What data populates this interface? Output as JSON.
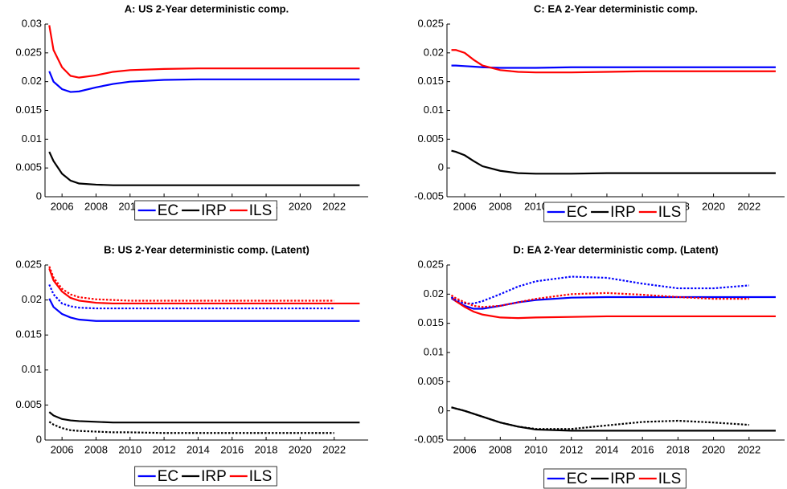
{
  "chart_data": [
    {
      "type": "line",
      "title": "A: US 2-Year deterministic comp.",
      "x": [
        2005.25,
        2005.5,
        2006,
        2006.5,
        2007,
        2008,
        2009,
        2010,
        2012,
        2014,
        2016,
        2018,
        2020,
        2022,
        2023.5
      ],
      "xlim": [
        2005,
        2024
      ],
      "xticks": [
        2006,
        2008,
        2010,
        2012,
        2014,
        2016,
        2018,
        2020,
        2022
      ],
      "ylim": [
        0,
        0.03
      ],
      "yticks": [
        0,
        0.005,
        0.01,
        0.015,
        0.02,
        0.025,
        0.03
      ],
      "series": [
        {
          "name": "EC",
          "color": "#0000ff",
          "values": [
            0.0218,
            0.02,
            0.0187,
            0.0182,
            0.0183,
            0.019,
            0.0196,
            0.02,
            0.0203,
            0.0204,
            0.0204,
            0.0204,
            0.0204,
            0.0204,
            0.0204
          ]
        },
        {
          "name": "IRP",
          "color": "#000000",
          "values": [
            0.0078,
            0.0062,
            0.004,
            0.0028,
            0.0023,
            0.0021,
            0.002,
            0.002,
            0.002,
            0.002,
            0.002,
            0.002,
            0.002,
            0.002,
            0.002
          ]
        },
        {
          "name": "ILS",
          "color": "#ff0000",
          "values": [
            0.0298,
            0.0255,
            0.0225,
            0.021,
            0.0207,
            0.0211,
            0.0217,
            0.022,
            0.0222,
            0.0223,
            0.0223,
            0.0223,
            0.0223,
            0.0223,
            0.0223
          ]
        }
      ]
    },
    {
      "type": "line",
      "title": "B: US 2-Year deterministic comp. (Latent)",
      "x": [
        2005.25,
        2005.5,
        2006,
        2006.5,
        2007,
        2008,
        2009,
        2010,
        2012,
        2014,
        2016,
        2018,
        2020,
        2022,
        2023.5
      ],
      "xlim": [
        2005,
        2024
      ],
      "xticks": [
        2006,
        2008,
        2010,
        2012,
        2014,
        2016,
        2018,
        2020,
        2022
      ],
      "ylim": [
        0,
        0.025
      ],
      "yticks": [
        0,
        0.005,
        0.01,
        0.015,
        0.02,
        0.025
      ],
      "series": [
        {
          "name": "EC",
          "color": "#0000ff",
          "values": [
            0.0202,
            0.019,
            0.018,
            0.0175,
            0.0172,
            0.017,
            0.017,
            0.017,
            0.017,
            0.017,
            0.017,
            0.017,
            0.017,
            0.017,
            0.017
          ]
        },
        {
          "name": "IRP",
          "color": "#000000",
          "values": [
            0.004,
            0.0035,
            0.003,
            0.0028,
            0.0027,
            0.0026,
            0.0025,
            0.0025,
            0.0025,
            0.0025,
            0.0025,
            0.0025,
            0.0025,
            0.0025,
            0.0025
          ]
        },
        {
          "name": "ILS",
          "color": "#ff0000",
          "values": [
            0.0245,
            0.0228,
            0.0212,
            0.0203,
            0.0199,
            0.0196,
            0.0195,
            0.0195,
            0.0195,
            0.0195,
            0.0195,
            0.0195,
            0.0195,
            0.0195,
            0.0195
          ]
        },
        {
          "style": "dotted",
          "color": "#0000ff",
          "values": [
            0.0222,
            0.0208,
            0.0195,
            0.0191,
            0.0189,
            0.0188,
            0.0188,
            0.0188,
            0.0188,
            0.0188,
            0.0188,
            0.0188,
            0.0188,
            0.0188,
            null
          ]
        },
        {
          "style": "dotted",
          "color": "#000000",
          "values": [
            0.0026,
            0.0022,
            0.0017,
            0.0014,
            0.0013,
            0.0012,
            0.0011,
            0.0011,
            0.001,
            0.001,
            0.001,
            0.001,
            0.001,
            0.001,
            null
          ]
        },
        {
          "style": "dotted",
          "color": "#ff0000",
          "values": [
            0.0248,
            0.0232,
            0.0216,
            0.0208,
            0.0204,
            0.0201,
            0.02,
            0.0199,
            0.0199,
            0.0199,
            0.0199,
            0.0199,
            0.0199,
            0.0199,
            null
          ]
        }
      ]
    },
    {
      "type": "line",
      "title": "C: EA 2-Year deterministic comp.",
      "x": [
        2005.25,
        2005.5,
        2006,
        2006.5,
        2007,
        2008,
        2009,
        2010,
        2012,
        2014,
        2016,
        2018,
        2020,
        2022,
        2023.5
      ],
      "xlim": [
        2005,
        2024
      ],
      "xticks": [
        2006,
        2008,
        2010,
        2012,
        2014,
        2016,
        2018,
        2020,
        2022
      ],
      "ylim": [
        -0.005,
        0.025
      ],
      "yticks": [
        -0.005,
        0,
        0.005,
        0.01,
        0.015,
        0.02,
        0.025
      ],
      "series": [
        {
          "name": "EC",
          "color": "#0000ff",
          "values": [
            0.0178,
            0.0178,
            0.0177,
            0.0176,
            0.0175,
            0.0174,
            0.0174,
            0.0174,
            0.0175,
            0.0175,
            0.0175,
            0.0175,
            0.0175,
            0.0175,
            0.0175
          ]
        },
        {
          "name": "IRP",
          "color": "#000000",
          "values": [
            0.003,
            0.0028,
            0.0022,
            0.0012,
            0.0003,
            -0.0005,
            -0.0009,
            -0.001,
            -0.001,
            -0.0009,
            -0.0009,
            -0.0009,
            -0.0009,
            -0.0009,
            -0.0009
          ]
        },
        {
          "name": "ILS",
          "color": "#ff0000",
          "values": [
            0.0205,
            0.0205,
            0.02,
            0.0188,
            0.0178,
            0.017,
            0.0167,
            0.0166,
            0.0166,
            0.0167,
            0.0168,
            0.0168,
            0.0168,
            0.0168,
            0.0168
          ]
        }
      ]
    },
    {
      "type": "line",
      "title": "D: EA 2-Year deterministic comp. (Latent)",
      "x": [
        2005.25,
        2005.5,
        2006,
        2006.5,
        2007,
        2008,
        2009,
        2010,
        2012,
        2014,
        2016,
        2018,
        2020,
        2022,
        2023.5
      ],
      "xlim": [
        2005,
        2024
      ],
      "xticks": [
        2006,
        2008,
        2010,
        2012,
        2014,
        2016,
        2018,
        2020,
        2022
      ],
      "ylim": [
        -0.005,
        0.025
      ],
      "yticks": [
        -0.005,
        0,
        0.005,
        0.01,
        0.015,
        0.02,
        0.025
      ],
      "series": [
        {
          "name": "EC",
          "color": "#0000ff",
          "values": [
            0.0193,
            0.0188,
            0.018,
            0.0175,
            0.0175,
            0.018,
            0.0186,
            0.019,
            0.0194,
            0.0195,
            0.0195,
            0.0195,
            0.0195,
            0.0195,
            0.0195
          ]
        },
        {
          "name": "IRP",
          "color": "#000000",
          "values": [
            0.0006,
            0.0004,
            0.0,
            -0.0005,
            -0.001,
            -0.002,
            -0.0027,
            -0.0032,
            -0.0034,
            -0.0034,
            -0.0034,
            -0.0034,
            -0.0034,
            -0.0034,
            -0.0034
          ]
        },
        {
          "name": "ILS",
          "color": "#ff0000",
          "values": [
            0.0195,
            0.0188,
            0.0178,
            0.017,
            0.0165,
            0.016,
            0.0159,
            0.016,
            0.0161,
            0.0162,
            0.0162,
            0.0162,
            0.0162,
            0.0162,
            0.0162
          ]
        },
        {
          "style": "dotted",
          "color": "#0000ff",
          "values": [
            0.0195,
            0.019,
            0.0184,
            0.0184,
            0.0188,
            0.02,
            0.0213,
            0.0222,
            0.023,
            0.0228,
            0.0218,
            0.021,
            0.021,
            0.0215,
            null
          ]
        },
        {
          "style": "dotted",
          "color": "#000000",
          "values": [
            0.0006,
            0.0004,
            0.0,
            -0.0005,
            -0.001,
            -0.002,
            -0.0027,
            -0.0031,
            -0.0031,
            -0.0025,
            -0.0019,
            -0.0017,
            -0.002,
            -0.0024,
            null
          ]
        },
        {
          "style": "dotted",
          "color": "#ff0000",
          "values": [
            0.0198,
            0.0193,
            0.0186,
            0.018,
            0.0178,
            0.018,
            0.0186,
            0.0192,
            0.02,
            0.0202,
            0.0199,
            0.0195,
            0.0192,
            0.0192,
            null
          ]
        }
      ]
    }
  ]
}
